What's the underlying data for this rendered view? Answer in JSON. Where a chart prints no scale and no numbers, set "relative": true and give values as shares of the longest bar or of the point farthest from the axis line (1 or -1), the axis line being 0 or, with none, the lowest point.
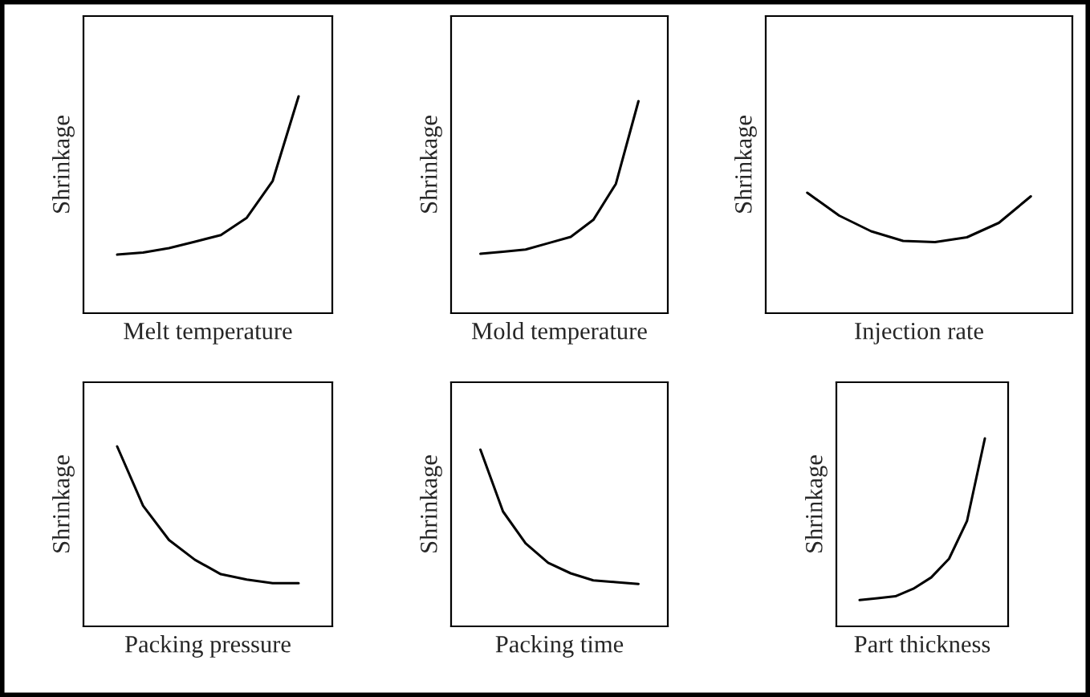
{
  "chart_data": [
    {
      "type": "line",
      "relative": true,
      "ylabel": "Shrinkage",
      "xlabel": "Melt temperature",
      "categories": [
        null,
        null,
        null,
        null,
        null,
        null,
        null,
        null
      ],
      "series": [
        {
          "color": "#000000",
          "values": [
            0.27,
            0.28,
            0.3,
            0.33,
            0.36,
            0.44,
            0.61,
            1
          ]
        }
      ]
    },
    {
      "type": "line",
      "relative": true,
      "ylabel": "Shrinkage",
      "xlabel": "Mold temperature",
      "categories": [
        null,
        null,
        null,
        null,
        null,
        null,
        null,
        null
      ],
      "series": [
        {
          "color": "#000000",
          "values": [
            0.28,
            0.29,
            0.3,
            0.33,
            0.36,
            0.44,
            0.61,
            1
          ]
        }
      ]
    },
    {
      "type": "line",
      "relative": true,
      "ylabel": "Shrinkage",
      "xlabel": "Injection rate",
      "categories": [
        null,
        null,
        null,
        null,
        null,
        null,
        null,
        null
      ],
      "series": [
        {
          "color": "#000000",
          "values": [
            1,
            0.81,
            0.68,
            0.6,
            0.59,
            0.63,
            0.75,
            0.97
          ]
        }
      ]
    },
    {
      "type": "line",
      "relative": true,
      "ylabel": "Shrinkage",
      "xlabel": "Packing pressure",
      "categories": [
        null,
        null,
        null,
        null,
        null,
        null,
        null,
        null
      ],
      "series": [
        {
          "color": "#000000",
          "values": [
            1,
            0.67,
            0.48,
            0.37,
            0.29,
            0.26,
            0.24,
            0.24
          ]
        }
      ]
    },
    {
      "type": "line",
      "relative": true,
      "ylabel": "Shrinkage",
      "xlabel": "Packing time",
      "categories": [
        null,
        null,
        null,
        null,
        null,
        null,
        null,
        null
      ],
      "series": [
        {
          "color": "#000000",
          "values": [
            1,
            0.65,
            0.47,
            0.36,
            0.3,
            0.26,
            0.25,
            0.24
          ]
        }
      ]
    },
    {
      "type": "line",
      "relative": true,
      "ylabel": "Shrinkage",
      "xlabel": "Part thickness",
      "categories": [
        null,
        null,
        null,
        null,
        null,
        null,
        null,
        null
      ],
      "series": [
        {
          "color": "#000000",
          "values": [
            0.14,
            0.15,
            0.16,
            0.2,
            0.26,
            0.36,
            0.56,
            1
          ]
        }
      ]
    }
  ]
}
